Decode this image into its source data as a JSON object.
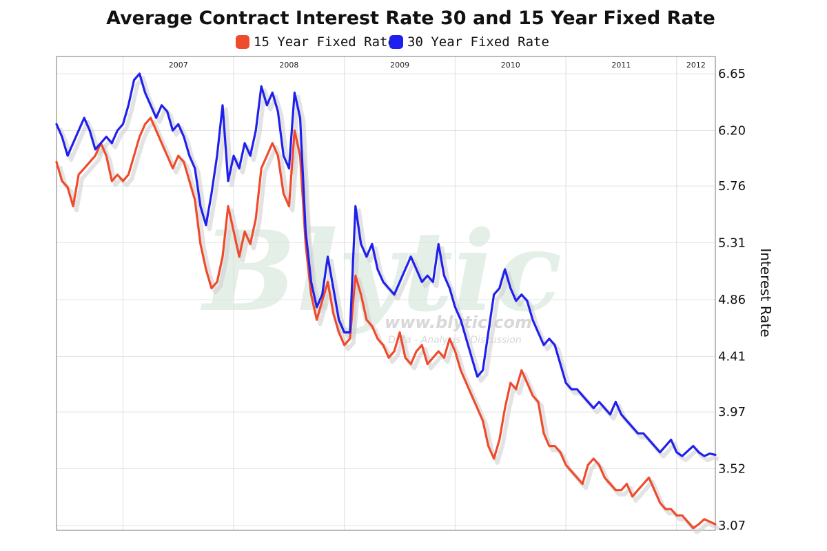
{
  "chart_data": {
    "type": "line",
    "title": "Average Contract Interest Rate 30 and 15 Year Fixed Rate",
    "ylabel": "Interest Rate",
    "xlabel": "",
    "ylim": [
      3.07,
      6.65
    ],
    "yticks": [
      "6.65",
      "6.20",
      "5.76",
      "5.31",
      "4.86",
      "4.41",
      "3.97",
      "3.52",
      "3.07"
    ],
    "x_axis": {
      "start": 2006.4,
      "end": 2012.35,
      "year_ticks": [
        "2007",
        "2008",
        "2009",
        "2010",
        "2011",
        "2012"
      ]
    },
    "y_axis_position": "right",
    "legend_position": "top-center",
    "grid": true,
    "colors": {
      "fifteen": "#f04a2c",
      "thirty": "#2020ee",
      "grid": "#e3e3e3",
      "axis": "#777777"
    },
    "series": [
      {
        "name": "15 Year Fixed Rate",
        "x": [
          2006.4,
          2006.45,
          2006.5,
          2006.55,
          2006.6,
          2006.65,
          2006.7,
          2006.75,
          2006.8,
          2006.85,
          2006.9,
          2006.95,
          2007.0,
          2007.05,
          2007.1,
          2007.15,
          2007.2,
          2007.25,
          2007.3,
          2007.35,
          2007.4,
          2007.45,
          2007.5,
          2007.55,
          2007.6,
          2007.65,
          2007.7,
          2007.75,
          2007.8,
          2007.85,
          2007.9,
          2007.95,
          2008.0,
          2008.05,
          2008.1,
          2008.15,
          2008.2,
          2008.25,
          2008.3,
          2008.35,
          2008.4,
          2008.45,
          2008.5,
          2008.55,
          2008.6,
          2008.65,
          2008.7,
          2008.75,
          2008.8,
          2008.85,
          2008.9,
          2008.95,
          2009.0,
          2009.05,
          2009.1,
          2009.15,
          2009.2,
          2009.25,
          2009.3,
          2009.35,
          2009.4,
          2009.45,
          2009.5,
          2009.55,
          2009.6,
          2009.65,
          2009.7,
          2009.75,
          2009.8,
          2009.85,
          2009.9,
          2009.95,
          2010.0,
          2010.05,
          2010.1,
          2010.15,
          2010.2,
          2010.25,
          2010.3,
          2010.35,
          2010.4,
          2010.45,
          2010.5,
          2010.55,
          2010.6,
          2010.65,
          2010.7,
          2010.75,
          2010.8,
          2010.85,
          2010.9,
          2010.95,
          2011.0,
          2011.05,
          2011.1,
          2011.15,
          2011.2,
          2011.25,
          2011.3,
          2011.35,
          2011.4,
          2011.45,
          2011.5,
          2011.55,
          2011.6,
          2011.65,
          2011.7,
          2011.75,
          2011.8,
          2011.85,
          2011.9,
          2011.95,
          2012.0,
          2012.05,
          2012.1,
          2012.15,
          2012.2,
          2012.25,
          2012.3,
          2012.35
        ],
        "values": [
          5.95,
          5.8,
          5.75,
          5.6,
          5.85,
          5.9,
          5.95,
          6.0,
          6.1,
          6.0,
          5.8,
          5.85,
          5.8,
          5.85,
          6.0,
          6.15,
          6.25,
          6.3,
          6.2,
          6.1,
          6.0,
          5.9,
          6.0,
          5.95,
          5.8,
          5.65,
          5.3,
          5.1,
          4.95,
          5.0,
          5.2,
          5.6,
          5.4,
          5.2,
          5.4,
          5.3,
          5.5,
          5.9,
          6.0,
          6.1,
          6.0,
          5.7,
          5.6,
          6.2,
          6.0,
          5.3,
          4.9,
          4.7,
          4.85,
          5.0,
          4.75,
          4.6,
          4.5,
          4.55,
          5.05,
          4.9,
          4.7,
          4.65,
          4.55,
          4.5,
          4.4,
          4.45,
          4.6,
          4.4,
          4.35,
          4.45,
          4.5,
          4.35,
          4.4,
          4.45,
          4.4,
          4.55,
          4.45,
          4.3,
          4.2,
          4.1,
          4.0,
          3.9,
          3.7,
          3.6,
          3.75,
          4.0,
          4.2,
          4.15,
          4.3,
          4.2,
          4.1,
          4.05,
          3.8,
          3.7,
          3.7,
          3.65,
          3.55,
          3.5,
          3.45,
          3.4,
          3.55,
          3.6,
          3.55,
          3.45,
          3.4,
          3.35,
          3.35,
          3.4,
          3.3,
          3.35,
          3.4,
          3.45,
          3.35,
          3.25,
          3.2,
          3.2,
          3.15,
          3.15,
          3.1,
          3.05,
          3.08,
          3.12,
          3.1,
          3.08
        ]
      },
      {
        "name": "30 Year Fixed Rate",
        "x": [
          2006.4,
          2006.45,
          2006.5,
          2006.55,
          2006.6,
          2006.65,
          2006.7,
          2006.75,
          2006.8,
          2006.85,
          2006.9,
          2006.95,
          2007.0,
          2007.05,
          2007.1,
          2007.15,
          2007.2,
          2007.25,
          2007.3,
          2007.35,
          2007.4,
          2007.45,
          2007.5,
          2007.55,
          2007.6,
          2007.65,
          2007.7,
          2007.75,
          2007.8,
          2007.85,
          2007.9,
          2007.95,
          2008.0,
          2008.05,
          2008.1,
          2008.15,
          2008.2,
          2008.25,
          2008.3,
          2008.35,
          2008.4,
          2008.45,
          2008.5,
          2008.55,
          2008.6,
          2008.65,
          2008.7,
          2008.75,
          2008.8,
          2008.85,
          2008.9,
          2008.95,
          2009.0,
          2009.05,
          2009.1,
          2009.15,
          2009.2,
          2009.25,
          2009.3,
          2009.35,
          2009.4,
          2009.45,
          2009.5,
          2009.55,
          2009.6,
          2009.65,
          2009.7,
          2009.75,
          2009.8,
          2009.85,
          2009.9,
          2009.95,
          2010.0,
          2010.05,
          2010.1,
          2010.15,
          2010.2,
          2010.25,
          2010.3,
          2010.35,
          2010.4,
          2010.45,
          2010.5,
          2010.55,
          2010.6,
          2010.65,
          2010.7,
          2010.75,
          2010.8,
          2010.85,
          2010.9,
          2010.95,
          2011.0,
          2011.05,
          2011.1,
          2011.15,
          2011.2,
          2011.25,
          2011.3,
          2011.35,
          2011.4,
          2011.45,
          2011.5,
          2011.55,
          2011.6,
          2011.65,
          2011.7,
          2011.75,
          2011.8,
          2011.85,
          2011.9,
          2011.95,
          2012.0,
          2012.05,
          2012.1,
          2012.15,
          2012.2,
          2012.25,
          2012.3,
          2012.35
        ],
        "values": [
          6.25,
          6.15,
          6.0,
          6.1,
          6.2,
          6.3,
          6.2,
          6.05,
          6.1,
          6.15,
          6.1,
          6.2,
          6.25,
          6.4,
          6.6,
          6.65,
          6.5,
          6.4,
          6.3,
          6.4,
          6.35,
          6.2,
          6.25,
          6.15,
          6.0,
          5.9,
          5.6,
          5.45,
          5.7,
          6.0,
          6.4,
          5.8,
          6.0,
          5.9,
          6.1,
          6.0,
          6.2,
          6.55,
          6.4,
          6.5,
          6.35,
          6.0,
          5.9,
          6.5,
          6.3,
          5.4,
          5.0,
          4.8,
          4.9,
          5.2,
          4.95,
          4.7,
          4.6,
          4.6,
          5.6,
          5.3,
          5.2,
          5.3,
          5.1,
          5.0,
          4.95,
          4.9,
          5.0,
          5.1,
          5.2,
          5.1,
          5.0,
          5.05,
          5.0,
          5.3,
          5.05,
          4.95,
          4.8,
          4.7,
          4.55,
          4.4,
          4.25,
          4.3,
          4.6,
          4.9,
          4.95,
          5.1,
          4.95,
          4.85,
          4.9,
          4.85,
          4.7,
          4.6,
          4.5,
          4.55,
          4.5,
          4.35,
          4.2,
          4.15,
          4.15,
          4.1,
          4.05,
          4.0,
          4.05,
          4.0,
          3.95,
          4.05,
          3.95,
          3.9,
          3.85,
          3.8,
          3.8,
          3.75,
          3.7,
          3.65,
          3.7,
          3.75,
          3.65,
          3.62,
          3.66,
          3.7,
          3.65,
          3.62,
          3.64,
          3.63
        ]
      }
    ]
  },
  "watermark": {
    "brand": "Blytic",
    "url": "www.blytic.com",
    "tagline": "Data - Analysis - Discussion"
  }
}
